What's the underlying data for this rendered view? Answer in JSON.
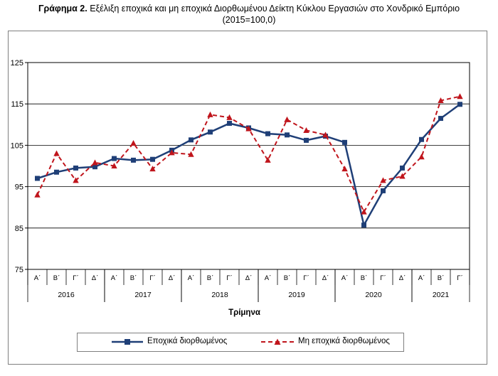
{
  "title": {
    "prefix": "Γράφημα 2.",
    "text": "Εξέλιξη εποχικά και μη εποχικά Διορθωμένου Δείκτη Κύκλου Εργασιών στο Χονδρικό Εμπόριο",
    "subtitle": "(2015=100,0)"
  },
  "chart_data": {
    "type": "line",
    "xlabel": "Τρίμηνα",
    "ylabel": "",
    "ylim": [
      75,
      125
    ],
    "yticks": [
      75,
      85,
      95,
      105,
      115,
      125
    ],
    "grid": "horizontal",
    "legend_position": "bottom",
    "quarters": [
      "Α΄",
      "Β΄",
      "Γ΄",
      "Δ΄",
      "Α΄",
      "Β΄",
      "Γ΄",
      "Δ΄",
      "Α΄",
      "Β΄",
      "Γ΄",
      "Δ΄",
      "Α΄",
      "Β΄",
      "Γ΄",
      "Δ΄",
      "Α΄",
      "Β΄",
      "Γ΄",
      "Δ΄",
      "Α΄",
      "Β΄",
      "Γ΄"
    ],
    "years": [
      {
        "label": "2016",
        "start": 0,
        "count": 4
      },
      {
        "label": "2017",
        "start": 4,
        "count": 4
      },
      {
        "label": "2018",
        "start": 8,
        "count": 4
      },
      {
        "label": "2019",
        "start": 12,
        "count": 4
      },
      {
        "label": "2020",
        "start": 16,
        "count": 4
      },
      {
        "label": "2021",
        "start": 20,
        "count": 3
      }
    ],
    "series": [
      {
        "name": "Εποχικά διορθωμένος",
        "color": "#1f3f77",
        "style": "solid",
        "marker": "square",
        "values": [
          97.0,
          98.5,
          99.5,
          99.8,
          101.8,
          101.4,
          101.6,
          103.8,
          106.3,
          108.2,
          110.3,
          109.2,
          107.8,
          107.5,
          106.2,
          107.2,
          105.7,
          85.7,
          94.0,
          99.5,
          106.4,
          111.5,
          114.9
        ]
      },
      {
        "name": "Μη εποχικά διορθωμένος",
        "color": "#c0151c",
        "style": "dashed",
        "marker": "triangle",
        "values": [
          93.0,
          103.0,
          96.5,
          100.8,
          100.0,
          105.5,
          99.3,
          103.2,
          102.8,
          112.4,
          111.7,
          109.0,
          101.4,
          111.2,
          108.6,
          107.5,
          99.3,
          88.9,
          96.5,
          97.5,
          102.2,
          115.8,
          116.8
        ]
      }
    ]
  }
}
